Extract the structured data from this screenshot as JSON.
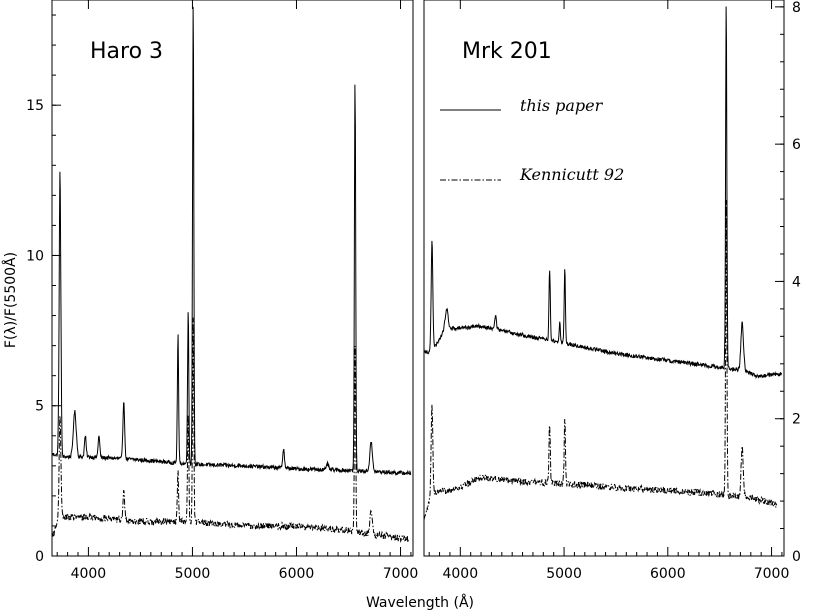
{
  "chart_data": [
    {
      "type": "line",
      "title": "Haro 3",
      "xlabel": "Wavelength (Å)",
      "ylabel": "F(λ)/F(5500Å)",
      "xlim": [
        3650,
        7120
      ],
      "ylim": [
        0,
        18.5
      ],
      "x_ticks": [
        4000,
        5000,
        6000,
        7000
      ],
      "y_ticks": [
        0,
        5,
        10,
        15
      ],
      "x_tick_labels": [
        "4000",
        "5000",
        "6000",
        "7000"
      ],
      "y_tick_labels": [
        "0",
        "5",
        "10",
        "15"
      ],
      "series": [
        {
          "name": "this paper",
          "style": "solid",
          "continuum": [
            [
              3650,
              3.4
            ],
            [
              3750,
              3.3
            ],
            [
              4000,
              3.3
            ],
            [
              4500,
              3.2
            ],
            [
              5000,
              3.05
            ],
            [
              5500,
              3.0
            ],
            [
              6000,
              2.9
            ],
            [
              6500,
              2.85
            ],
            [
              7100,
              2.75
            ]
          ],
          "lines": [
            [
              3727,
              12.8,
              8
            ],
            [
              3869,
              4.8,
              14
            ],
            [
              3970,
              4.0,
              8
            ],
            [
              4101,
              4.0,
              8
            ],
            [
              4340,
              5.2,
              8
            ],
            [
              4861,
              7.4,
              6
            ],
            [
              4959,
              8.2,
              6
            ],
            [
              5007,
              18.5,
              6
            ],
            [
              5876,
              3.6,
              8
            ],
            [
              6300,
              3.1,
              8
            ],
            [
              6563,
              15.8,
              6
            ],
            [
              6717,
              3.8,
              12
            ]
          ]
        },
        {
          "name": "Kennicutt 92",
          "style": "dashdot",
          "continuum": [
            [
              3650,
              0.6
            ],
            [
              3720,
              1.3
            ],
            [
              4000,
              1.3
            ],
            [
              4500,
              1.15
            ],
            [
              5000,
              1.15
            ],
            [
              5500,
              1.0
            ],
            [
              6000,
              1.0
            ],
            [
              6500,
              0.85
            ],
            [
              7080,
              0.55
            ]
          ],
          "lines": [
            [
              3727,
              4.8,
              8
            ],
            [
              4340,
              2.2,
              8
            ],
            [
              4861,
              2.8,
              6
            ],
            [
              4959,
              4.8,
              6
            ],
            [
              5007,
              8.0,
              6
            ],
            [
              6563,
              7.0,
              6
            ],
            [
              6717,
              1.6,
              10
            ]
          ]
        }
      ]
    },
    {
      "type": "line",
      "title": "Mrk 201",
      "xlabel": "Wavelength (Å)",
      "xlim": [
        3650,
        7120
      ],
      "ylim": [
        0,
        8.1
      ],
      "x_ticks": [
        4000,
        5000,
        6000,
        7000
      ],
      "y_ticks": [
        0,
        2,
        4,
        6,
        8
      ],
      "x_tick_labels": [
        "4000",
        "5000",
        "6000",
        "7000"
      ],
      "y_tick_labels": [
        "0",
        "2",
        "4",
        "6",
        "8"
      ],
      "legend_position": "top-left",
      "series": [
        {
          "name": "this paper",
          "style": "solid",
          "continuum": [
            [
              3650,
              3.0
            ],
            [
              3720,
              2.95
            ],
            [
              3850,
              3.3
            ],
            [
              4200,
              3.35
            ],
            [
              4500,
              3.25
            ],
            [
              5000,
              3.1
            ],
            [
              5500,
              2.95
            ],
            [
              6000,
              2.85
            ],
            [
              6500,
              2.75
            ],
            [
              6750,
              2.7
            ],
            [
              6850,
              2.62
            ],
            [
              7100,
              2.65
            ]
          ],
          "lines": [
            [
              3727,
              4.6,
              8
            ],
            [
              3869,
              3.6,
              14
            ],
            [
              4340,
              3.5,
              8
            ],
            [
              4861,
              4.2,
              6
            ],
            [
              4959,
              3.4,
              6
            ],
            [
              5007,
              4.2,
              6
            ],
            [
              6563,
              8.1,
              6
            ],
            [
              6717,
              3.4,
              12
            ]
          ]
        },
        {
          "name": "Kennicutt 92",
          "style": "dashdot",
          "continuum": [
            [
              3650,
              0.5
            ],
            [
              3720,
              0.9
            ],
            [
              4000,
              1.0
            ],
            [
              4200,
              1.15
            ],
            [
              4500,
              1.1
            ],
            [
              5000,
              1.05
            ],
            [
              5500,
              1.0
            ],
            [
              6000,
              0.95
            ],
            [
              6500,
              0.9
            ],
            [
              6800,
              0.85
            ],
            [
              7050,
              0.75
            ]
          ],
          "lines": [
            [
              3727,
              2.2,
              8
            ],
            [
              4861,
              1.95,
              6
            ],
            [
              5007,
              2.0,
              6
            ],
            [
              6563,
              5.2,
              6
            ],
            [
              6717,
              1.6,
              10
            ]
          ]
        }
      ]
    }
  ]
}
